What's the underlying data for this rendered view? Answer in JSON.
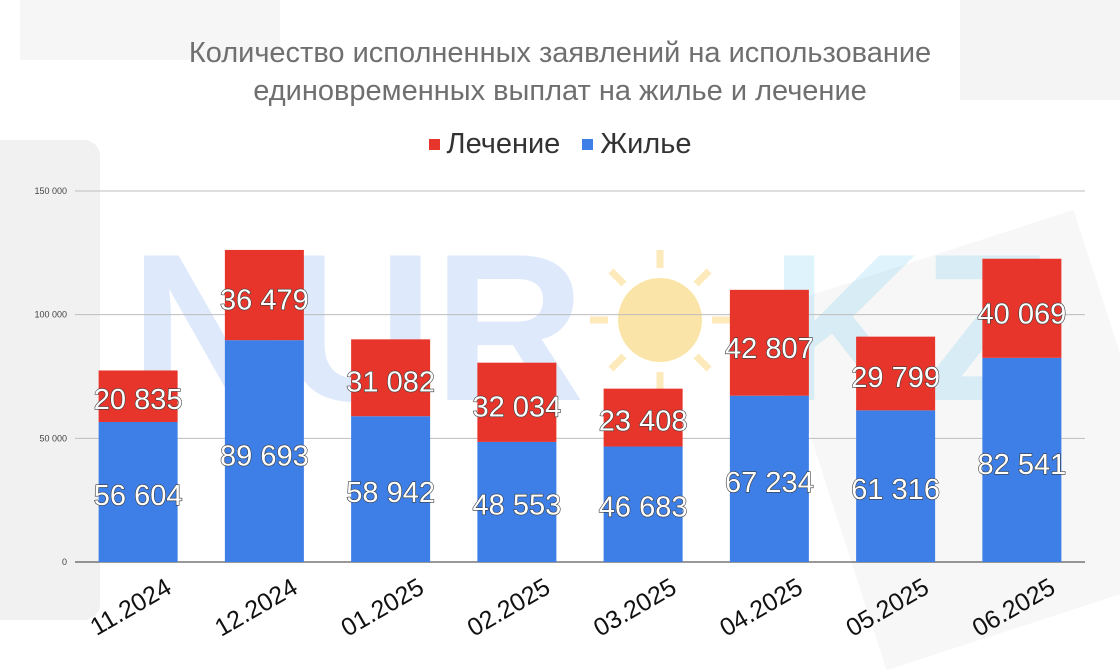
{
  "watermark": {
    "logo_text_left": "NUR",
    "logo_text_right": "KZ"
  },
  "colors": {
    "treatment": "#e8352b",
    "housing": "#3d7fe6",
    "grid": "#bdbdbd"
  },
  "chart_data": {
    "type": "bar",
    "stacked": true,
    "title_line1": "Количество исполненных заявлений на использование",
    "title_line2": "единовременных выплат на жилье и лечение",
    "categories": [
      "11.2024",
      "12.2024",
      "01.2025",
      "02.2025",
      "03.2025",
      "04.2025",
      "05.2025",
      "06.2025"
    ],
    "series": [
      {
        "name": "Жилье",
        "values": [
          56604,
          89693,
          58942,
          48553,
          46683,
          67234,
          61316,
          82541
        ],
        "labels": [
          "56 604",
          "89 693",
          "58 942",
          "48 553",
          "46 683",
          "67 234",
          "61 316",
          "82 541"
        ]
      },
      {
        "name": "Лечение",
        "values": [
          20835,
          36479,
          31082,
          32034,
          23408,
          42807,
          29799,
          40069
        ],
        "labels": [
          "20 835",
          "36 479",
          "31 082",
          "32 034",
          "23 408",
          "42 807",
          "29 799",
          "40 069"
        ]
      }
    ],
    "legend_order": [
      "Лечение",
      "Жилье"
    ],
    "legend_position": "top",
    "ylim": [
      0,
      150000
    ],
    "yticks": [
      0,
      50000,
      100000,
      150000
    ],
    "ytick_labels": [
      "0",
      "50 000",
      "100 000",
      "150 000"
    ],
    "grid": true,
    "xlabel": "",
    "ylabel": ""
  }
}
